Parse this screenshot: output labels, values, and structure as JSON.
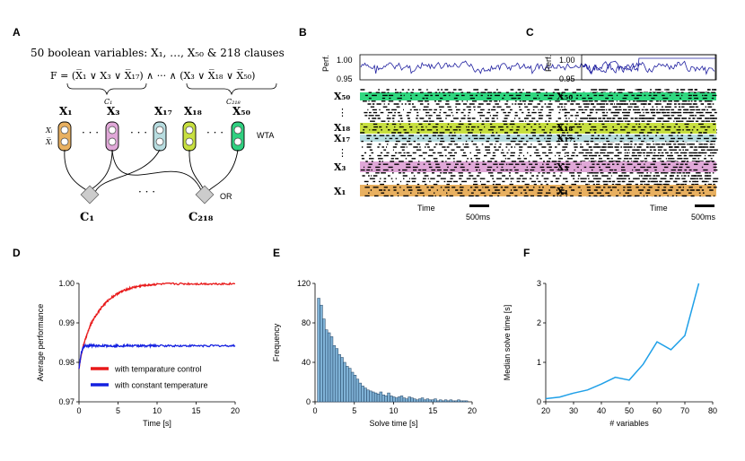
{
  "panels": {
    "A": {
      "label": "A",
      "title": "50 boolean variables: X₁, …, X₅₀ & 218 clauses",
      "formula": "F = (X̅₁ ∨ X₃ ∨ X̅₁₇) ∧ ··· ∧ (X₃ ∨ X̅₁₈ ∨ X̅₅₀)",
      "clause_first": "C₁",
      "clause_last": "C₂₁₈",
      "var_labels": [
        "X₁",
        "X₃",
        "X₁₇",
        "X₁₈",
        "X₅₀"
      ],
      "var_colors": [
        "#e8b060",
        "#e0a8d8",
        "#b8dde0",
        "#c8e040",
        "#30d080"
      ],
      "xi_label": "Xᵢ",
      "xi_bar_label": "X̅ᵢ",
      "dots": "· · ·",
      "wta_label": "WTA",
      "or_label": "OR",
      "node_c1": "C₁",
      "node_c218": "C₂₁₈"
    },
    "B": {
      "label": "B",
      "perf_ylabel": "Perf.",
      "perf_ticks": [
        "1.00",
        "0.95"
      ],
      "rows": [
        "X₅₀",
        "X₁₈",
        "X₁₇",
        "X₃",
        "X₁"
      ],
      "vdots": "⋮",
      "xlabel": "Time",
      "scale_label": "500ms"
    },
    "C": {
      "label": "C",
      "perf_ylabel": "Perf.",
      "perf_ticks": [
        "1.00",
        "0.95"
      ],
      "rows": [
        "X₅₀",
        "X₁₈",
        "X₁₇",
        "X₃",
        "X₁"
      ],
      "vdots": "⋮",
      "xlabel": "Time",
      "scale_label": "500ms"
    },
    "D": {
      "label": "D"
    },
    "E": {
      "label": "E"
    },
    "F": {
      "label": "F"
    }
  },
  "chart_data": [
    {
      "panel": "D",
      "type": "line",
      "xlabel": "Time [s]",
      "ylabel": "Average performance",
      "xlim": [
        0,
        20
      ],
      "ylim": [
        0.97,
        1.0
      ],
      "xticks": [
        0,
        5,
        10,
        15,
        20
      ],
      "yticks": [
        "0.97",
        "0.98",
        "0.99",
        "1.00"
      ],
      "legend_position": "bottom-left",
      "series": [
        {
          "name": "with temparature control",
          "color": "#e8191a",
          "x": [
            0,
            0.3,
            0.6,
            1,
            1.5,
            2,
            3,
            4,
            5,
            6,
            7,
            8,
            9,
            10,
            12,
            14,
            16,
            18,
            20
          ],
          "y": [
            0.9785,
            0.982,
            0.9845,
            0.987,
            0.9895,
            0.9915,
            0.9942,
            0.9962,
            0.9975,
            0.9984,
            0.999,
            0.9994,
            0.9996,
            0.9998,
            0.9999,
            0.9999,
            0.9999,
            0.9999,
            0.9999
          ]
        },
        {
          "name": "with constant temperature",
          "color": "#1420e0",
          "x": [
            0,
            0.3,
            0.6,
            1,
            1.5,
            2,
            3,
            4,
            5,
            6,
            7,
            8,
            9,
            10,
            12,
            14,
            16,
            18,
            20
          ],
          "y": [
            0.9785,
            0.9825,
            0.984,
            0.9842,
            0.9842,
            0.9842,
            0.9842,
            0.9842,
            0.9842,
            0.9842,
            0.9842,
            0.9842,
            0.9842,
            0.9842,
            0.9842,
            0.9842,
            0.9842,
            0.9842,
            0.9842
          ]
        }
      ]
    },
    {
      "panel": "E",
      "type": "bar",
      "xlabel": "Solve time [s]",
      "ylabel": "Frequency",
      "xlim": [
        0,
        20
      ],
      "ylim": [
        0,
        120
      ],
      "xticks": [
        0,
        5,
        10,
        15,
        20
      ],
      "yticks": [
        0,
        40,
        80,
        120
      ],
      "bin_width": 0.33,
      "bin_start": 0.3,
      "values": [
        105,
        98,
        84,
        73,
        70,
        66,
        57,
        54,
        48,
        45,
        40,
        36,
        34,
        30,
        27,
        23,
        19,
        16,
        14,
        12,
        11,
        10,
        9,
        8,
        10,
        7,
        6,
        9,
        6,
        5,
        4,
        5,
        6,
        4,
        3,
        5,
        4,
        3,
        2,
        3,
        4,
        2,
        3,
        2,
        2,
        3,
        1,
        2,
        1,
        2,
        1,
        2,
        1,
        1,
        2,
        1,
        1,
        1,
        0
      ]
    },
    {
      "panel": "F",
      "type": "line",
      "xlabel": "# variables",
      "ylabel": "Median solve time [s]",
      "xlim": [
        20,
        80
      ],
      "ylim": [
        0,
        3
      ],
      "xticks": [
        20,
        30,
        40,
        50,
        60,
        70,
        80
      ],
      "yticks": [
        0,
        1,
        2,
        3
      ],
      "series": [
        {
          "color": "#1fa0e8",
          "x": [
            20,
            25,
            30,
            35,
            40,
            45,
            50,
            55,
            60,
            65,
            70,
            75
          ],
          "y": [
            0.08,
            0.12,
            0.22,
            0.3,
            0.45,
            0.62,
            0.55,
            0.95,
            1.52,
            1.32,
            1.68,
            3.0
          ]
        }
      ]
    }
  ]
}
